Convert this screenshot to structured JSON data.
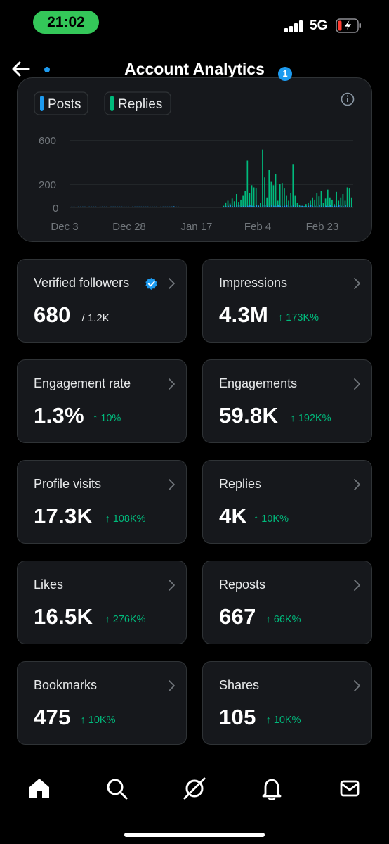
{
  "status_bar": {
    "time": "21:02",
    "network": "5G",
    "icons": [
      "signal-bars-icon",
      "battery-charging-icon"
    ]
  },
  "header": {
    "title": "Account Analytics",
    "back_icon": "arrow-left-icon"
  },
  "chart_data": {
    "type": "bar",
    "legend": [
      {
        "name": "Posts",
        "color": "#1d9bf0"
      },
      {
        "name": "Replies",
        "color": "#00ba7c"
      }
    ],
    "y_ticks": [
      "600",
      "200",
      "0"
    ],
    "x_ticks": [
      "Dec 3",
      "Dec 28",
      "Jan 17",
      "Feb 4",
      "Feb 23"
    ],
    "ylim": [
      0,
      600
    ],
    "series": [
      {
        "name": "Replies",
        "values": [
          0,
          0,
          0,
          0,
          0,
          0,
          0,
          0,
          0,
          0,
          0,
          0,
          0,
          0,
          0,
          0,
          0,
          0,
          0,
          0,
          0,
          0,
          0,
          0,
          0,
          0,
          0,
          0,
          0,
          0,
          0,
          0,
          0,
          0,
          0,
          0,
          0,
          0,
          0,
          0,
          0,
          0,
          0,
          0,
          0,
          0,
          0,
          0,
          0,
          0,
          0,
          0,
          0,
          0,
          0,
          0,
          0,
          0,
          0,
          0,
          0,
          0,
          0,
          0,
          0,
          0,
          0,
          0,
          0,
          0,
          15,
          45,
          60,
          35,
          80,
          55,
          120,
          50,
          70,
          110,
          150,
          420,
          130,
          200,
          180,
          170,
          25,
          40,
          520,
          270,
          90,
          340,
          230,
          200,
          300,
          60,
          210,
          220,
          170,
          110,
          60,
          130,
          390,
          110,
          40,
          20,
          10,
          10,
          30,
          40,
          60,
          90,
          70,
          130,
          100,
          150,
          40,
          80,
          160,
          90,
          70,
          30,
          140,
          60,
          90,
          120,
          60,
          180,
          170,
          90
        ]
      },
      {
        "name": "Posts",
        "values": [
          3,
          2,
          0,
          4,
          2,
          3,
          1,
          0,
          5,
          2,
          3,
          1,
          0,
          2,
          3,
          4,
          2,
          0,
          1,
          6,
          2,
          3,
          2,
          4,
          5,
          3,
          2,
          0,
          4,
          2,
          3,
          4,
          5,
          2,
          3,
          1,
          6,
          4,
          3,
          2,
          0,
          1,
          2,
          3,
          4,
          6,
          8,
          10,
          3,
          2,
          0,
          0,
          0,
          0,
          0,
          0,
          0,
          0,
          0,
          0,
          0,
          0,
          0,
          0,
          0,
          0,
          0,
          0,
          0,
          0,
          5,
          10,
          15,
          20,
          10,
          15,
          20,
          25,
          10,
          15,
          10,
          15,
          20,
          15,
          10,
          20,
          15,
          10,
          25,
          20,
          15,
          10,
          20,
          15,
          10,
          20,
          15,
          10,
          15,
          20,
          10,
          15,
          20,
          10,
          15,
          10,
          15,
          10,
          10,
          15,
          20,
          10,
          15,
          10,
          20,
          15,
          10,
          15,
          10,
          20,
          10,
          15,
          10,
          20,
          15,
          10,
          20,
          10,
          15,
          10
        ]
      }
    ]
  },
  "chart": {
    "info_icon": "info-circle-icon"
  },
  "stats": [
    {
      "label": "Verified followers",
      "value": "680",
      "sub": "/ 1.2K",
      "delta": "",
      "verified": true
    },
    {
      "label": "Impressions",
      "value": "4.3M",
      "sub": "",
      "delta": "↑ 173K%"
    },
    {
      "label": "Engagement rate",
      "value": "1.3%",
      "sub": "",
      "delta": "↑ 10%"
    },
    {
      "label": "Engagements",
      "value": "59.8K",
      "sub": "",
      "delta": "↑ 192K%"
    },
    {
      "label": "Profile visits",
      "value": "17.3K",
      "sub": "",
      "delta": "↑ 108K%"
    },
    {
      "label": "Replies",
      "value": "4K",
      "sub": "",
      "delta": "↑ 10K%"
    },
    {
      "label": "Likes",
      "value": "16.5K",
      "sub": "",
      "delta": "↑ 276K%"
    },
    {
      "label": "Reposts",
      "value": "667",
      "sub": "",
      "delta": "↑ 66K%"
    },
    {
      "label": "Bookmarks",
      "value": "475",
      "sub": "",
      "delta": "↑ 10K%"
    },
    {
      "label": "Shares",
      "value": "105",
      "sub": "",
      "delta": "↑ 10K%"
    }
  ],
  "bottom_nav": {
    "items": [
      "home-icon",
      "search-icon",
      "grok-icon",
      "notifications-icon",
      "messages-icon"
    ],
    "notification_count": "1"
  },
  "colors": {
    "background": "#000000",
    "card": "#16181c",
    "border": "#2f3336",
    "positive": "#00ba7c",
    "accent": "#1d9bf0",
    "status_pill": "#34c759"
  }
}
